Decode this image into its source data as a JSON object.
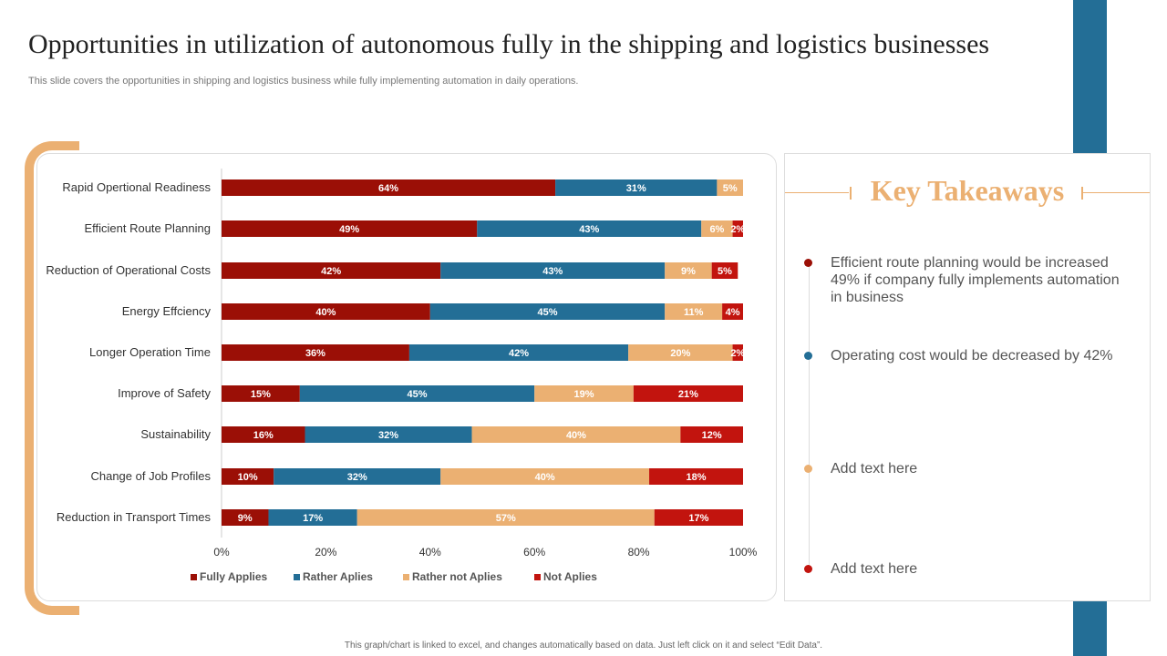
{
  "title": "Opportunities in utilization of autonomous fully in the shipping and logistics businesses",
  "subtitle": "This slide covers the opportunities in shipping and logistics business while fully implementing automation in daily operations.",
  "footer": "This graph/chart is linked to excel, and changes automatically based on data. Just left click on it and select “Edit Data”.",
  "chart_data": {
    "type": "bar",
    "orientation": "horizontal",
    "stacked": true,
    "categories": [
      "Rapid Opertional  Readiness",
      "Efficient Route Planning",
      "Reduction of Operational Costs",
      "Energy Effciency",
      "Longer Operation Time",
      "Improve of Safety",
      "Sustainability",
      "Change of Job Profiles",
      "Reduction in Transport Times"
    ],
    "series": [
      {
        "name": "Fully Applies",
        "color": "#9b0f06",
        "values": [
          64,
          49,
          42,
          40,
          36,
          15,
          16,
          10,
          9
        ]
      },
      {
        "name": "Rather Aplies",
        "color": "#236e96",
        "values": [
          31,
          43,
          43,
          45,
          42,
          45,
          32,
          32,
          17
        ]
      },
      {
        "name": "Rather not Aplies",
        "color": "#ebb072",
        "values": [
          5,
          6,
          9,
          11,
          20,
          19,
          40,
          40,
          57
        ]
      },
      {
        "name": "Not Aplies",
        "color": "#c2140e",
        "values": [
          0,
          2,
          5,
          4,
          2,
          21,
          12,
          18,
          17
        ]
      }
    ],
    "xlim": [
      0,
      100
    ],
    "xticks": [
      "0%",
      "20%",
      "40%",
      "60%",
      "80%",
      "100%"
    ],
    "legend": "bottom",
    "grid": false
  },
  "takeaways": {
    "heading": "Key Takeaways",
    "items": [
      {
        "text": "Efficient route planning would be increased 49% if company fully implements automation in business",
        "color": "#9b0f06"
      },
      {
        "text": "Operating cost would be decreased by 42%",
        "color": "#236e96"
      },
      {
        "text": "Add text here",
        "color": "#ebb072"
      },
      {
        "text": "Add text here",
        "color": "#c2140e"
      }
    ]
  }
}
